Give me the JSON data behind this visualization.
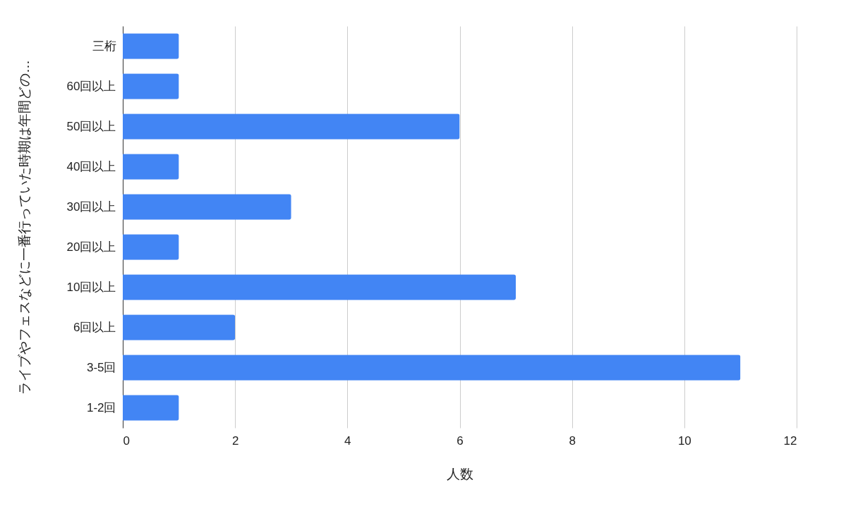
{
  "chart_data": {
    "type": "bar",
    "orientation": "horizontal",
    "ylabel": "ライブやフェスなどに一番行っていた時期は年間どの…",
    "xlabel": "人数",
    "categories": [
      "三桁",
      "60回以上",
      "50回以上",
      "40回以上",
      "30回以上",
      "20回以上",
      "10回以上",
      "6回以上",
      "3-5回",
      "1-2回"
    ],
    "values": [
      1,
      1,
      6,
      1,
      3,
      1,
      7,
      2,
      11,
      1
    ],
    "color": "#4285f4",
    "xlim": [
      0,
      12
    ],
    "xticks": [
      0,
      2,
      4,
      6,
      8,
      10,
      12
    ],
    "grid": "x"
  }
}
